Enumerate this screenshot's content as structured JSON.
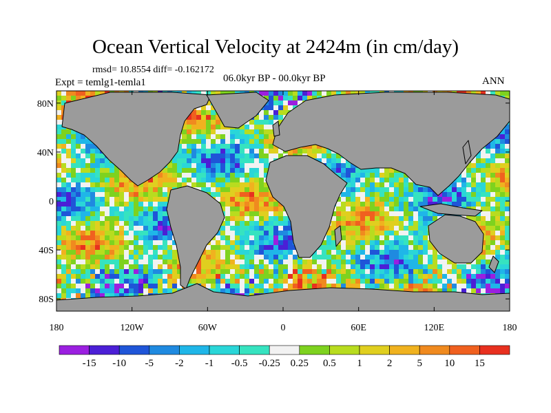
{
  "chart_data": {
    "type": "heatmap",
    "title": "Ocean Vertical Velocity at 2424m (in cm/day)",
    "stats": "rmsd= 10.8554 diff= -0.162172",
    "period": "06.0kyr BP - 00.0kyr BP",
    "experiment": "Expt = temlg1-temla1",
    "season": "ANN",
    "x_range": [
      -180,
      180
    ],
    "y_range": [
      -90,
      90
    ],
    "x_ticks": [
      {
        "value": -180,
        "label": "180"
      },
      {
        "value": -120,
        "label": "120W"
      },
      {
        "value": -60,
        "label": "60W"
      },
      {
        "value": 0,
        "label": "0"
      },
      {
        "value": 60,
        "label": "60E"
      },
      {
        "value": 120,
        "label": "120E"
      },
      {
        "value": 180,
        "label": "180"
      }
    ],
    "y_ticks": [
      {
        "value": 80,
        "label": "80N"
      },
      {
        "value": 40,
        "label": "40N"
      },
      {
        "value": 0,
        "label": "0"
      },
      {
        "value": -40,
        "label": "40S"
      },
      {
        "value": -80,
        "label": "80S"
      }
    ],
    "colorbar": {
      "labels": [
        "-15",
        "-10",
        "-5",
        "-2",
        "-1",
        "-0.5",
        "-0.25",
        "0.25",
        "0.5",
        "1",
        "2",
        "5",
        "10",
        "15"
      ],
      "colors": [
        "#9b1fe0",
        "#4b1fd6",
        "#1f55d8",
        "#1f8ae0",
        "#1fb6e8",
        "#2ad6d8",
        "#36e3c0",
        "#f2f2f2",
        "#7ed21f",
        "#b8dc1f",
        "#e0cf1f",
        "#f0b21f",
        "#f08a1f",
        "#f0601f",
        "#e8301f"
      ]
    },
    "land_color": "#9b9b9b"
  }
}
